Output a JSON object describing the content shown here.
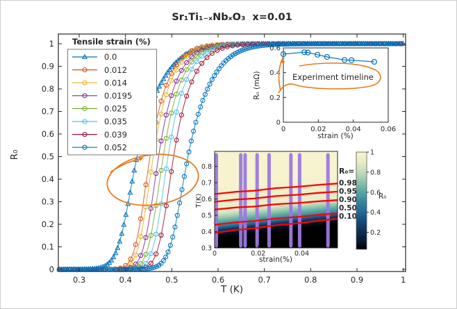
{
  "figure": {
    "title": "Sr₁Ti₁₋ₓNbₓO₃  x=0.01",
    "title_color": "#6d1a10",
    "background": "#ffffff"
  },
  "palette": {
    "matlab_blue": "#0072BD",
    "matlab_orange": "#D95319",
    "matlab_yellow": "#EDB120",
    "matlab_purple": "#7E2F8E",
    "matlab_green": "#77AC30",
    "matlab_cyan": "#4DBEEE",
    "matlab_maroon": "#A2142F",
    "annotation_orange": "#e87a1e",
    "contour_red": "#ff0000",
    "data_column_purple": "#9b7ae0",
    "axis_color": "#262626"
  },
  "chart_data": [
    {
      "type": "line",
      "name": "main-resistance-transitions",
      "title": "Sr₁Ti₁₋ₓNbₓO₃  x=0.01",
      "xlabel": "T (K)",
      "ylabel": "R₀",
      "xlim": [
        0.255,
        1.005
      ],
      "ylim": [
        0,
        1
      ],
      "x_ticks": [
        "0.3",
        "0.4",
        "0.5",
        "0.6",
        "0.7",
        "0.8",
        "0.9",
        "1"
      ],
      "y_ticks": [
        "0",
        "0.1",
        "0.2",
        "0.3",
        "0.4",
        "0.5",
        "0.6",
        "0.7",
        "0.8",
        "0.9",
        "1"
      ],
      "legend_title": "Tensile strain (%)",
      "model": "R0(T)=1/(1+exp(-(T-Tc)/w_eff)), w_eff=w*(1+1.3/(1+exp(-(T-Tc)/0.025))) ; superconducting transition curves, markers are measured points",
      "series": [
        {
          "name": "0.0",
          "color": "#0072BD",
          "marker": "triangle",
          "Tc": 0.425,
          "w": 0.0155,
          "marker_step": 0.0045
        },
        {
          "name": "0.012",
          "color": "#D95319",
          "marker": "circle",
          "Tc": 0.453,
          "w": 0.0115,
          "marker_step": 0.011
        },
        {
          "name": "0.014",
          "color": "#EDB120",
          "marker": "circle",
          "Tc": 0.46,
          "w": 0.0115,
          "marker_step": 0.011
        },
        {
          "name": "0.0195",
          "color": "#7E2F8E",
          "marker": "circle",
          "Tc": 0.4715,
          "w": 0.0115,
          "marker_step": 0.011
        },
        {
          "name": "0.025",
          "color": "#77AC30",
          "marker": "circle",
          "Tc": 0.4815,
          "w": 0.0115,
          "marker_step": 0.011
        },
        {
          "name": "0.035",
          "color": "#4DBEEE",
          "marker": "circle",
          "Tc": 0.492,
          "w": 0.0115,
          "marker_step": 0.011
        },
        {
          "name": "0.039",
          "color": "#A2142F",
          "marker": "circle",
          "Tc": 0.504,
          "w": 0.0118,
          "marker_step": 0.011
        },
        {
          "name": "0.052",
          "color": "#0072BD",
          "marker": "circle",
          "Tc": 0.535,
          "w": 0.0145,
          "marker_step": 0.005
        }
      ],
      "annotation": {
        "type": "ellipse+arrow",
        "color": "#e87a1e",
        "T_center": 0.459,
        "R_center": 0.4
      }
    },
    {
      "type": "line",
      "name": "normal-state-resistance-inset",
      "xlabel": "strain (%)",
      "ylabel": "Rₙ (mΩ)",
      "xlim": [
        0,
        0.06
      ],
      "ylim": [
        0,
        0.6
      ],
      "x_ticks": [
        "0",
        "0.02",
        "0.04",
        "0.06"
      ],
      "y_ticks": [
        "0",
        "0.2",
        "0.4",
        "0.6"
      ],
      "color": "#0072BD",
      "marker": "circle",
      "x": [
        0,
        0.012,
        0.014,
        0.0195,
        0.025,
        0.035,
        0.039,
        0.052
      ],
      "y": [
        0.55,
        0.565,
        0.563,
        0.545,
        0.527,
        0.503,
        0.501,
        0.488
      ],
      "annotation": {
        "text": "Experiment timeline",
        "color": "#e87a1e"
      }
    },
    {
      "type": "heatmap",
      "name": "R0-vs-strain-temperature-phase-map",
      "xlabel": "strain(%)",
      "ylabel": "T(K)",
      "xlim": [
        0,
        0.0564
      ],
      "ylim": [
        0.3,
        0.892
      ],
      "x_ticks": [
        "0",
        "0.02",
        "0.04"
      ],
      "y_ticks": [
        "0.3",
        "0.4",
        "0.5",
        "0.6",
        "0.7",
        "0.8"
      ],
      "contour_label_prefix": "R₀=",
      "contours": [
        {
          "level": "0.98",
          "T_at_strain0": 0.63,
          "T_at_strain_max": 0.695
        },
        {
          "level": "0.95",
          "T_at_strain0": 0.583,
          "T_at_strain_max": 0.645
        },
        {
          "level": "0.90",
          "T_at_strain0": 0.535,
          "T_at_strain_max": 0.593
        },
        {
          "level": "0.50",
          "T_at_strain0": 0.442,
          "T_at_strain_max": 0.512
        },
        {
          "level": "0.10",
          "T_at_strain0": 0.392,
          "T_at_strain_max": 0.478
        }
      ],
      "data_column_strains": [
        0,
        0.012,
        0.014,
        0.0195,
        0.025,
        0.035,
        0.039,
        0.052
      ],
      "colormap": [
        [
          1.0,
          "#f7f3cf"
        ],
        [
          0.9,
          "#e9edc6"
        ],
        [
          0.8,
          "#c4dcba"
        ],
        [
          0.7,
          "#8fc4ae"
        ],
        [
          0.6,
          "#56a8a4"
        ],
        [
          0.5,
          "#35879f"
        ],
        [
          0.4,
          "#236a95"
        ],
        [
          0.3,
          "#174a78"
        ],
        [
          0.2,
          "#102f52"
        ],
        [
          0.1,
          "#081a30"
        ],
        [
          0.02,
          "#000000"
        ]
      ],
      "colorbar": {
        "ticks": [
          "1",
          "0.8",
          "0.6",
          "0.4",
          "0.2"
        ],
        "label": "R₀"
      }
    }
  ]
}
